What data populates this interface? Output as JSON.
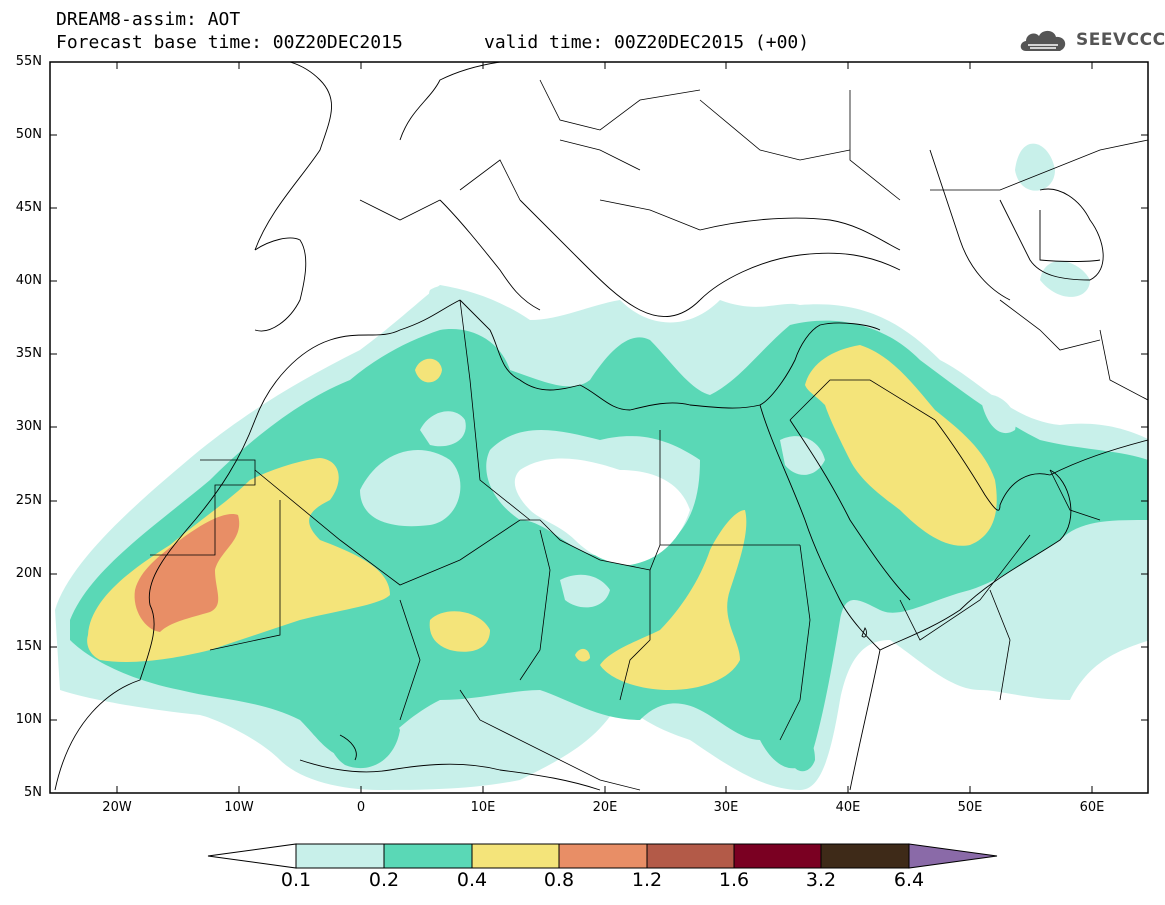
{
  "header": {
    "line1": "DREAM8-assim: AOT",
    "line2": "Forecast base time: 00Z20DEC2015",
    "line3": "valid time: 00Z20DEC2015 (+00)",
    "logo_text": "SEEVCCC",
    "logo_icon": "cloud-icon"
  },
  "axes": {
    "lat_labels": [
      "55N",
      "50N",
      "45N",
      "40N",
      "35N",
      "30N",
      "25N",
      "20N",
      "15N",
      "10N",
      "5N"
    ],
    "lon_labels": [
      "20W",
      "10W",
      "0",
      "10E",
      "20E",
      "30E",
      "40E",
      "50E",
      "60E"
    ],
    "lon_range": [
      -25,
      65
    ],
    "lat_range": [
      5,
      55
    ]
  },
  "colorbar": {
    "labels": [
      "0.1",
      "0.2",
      "0.4",
      "0.8",
      "1.2",
      "1.6",
      "3.2",
      "6.4"
    ],
    "colors": [
      "#ffffff",
      "#c8f0ea",
      "#5ad8b6",
      "#f4e47a",
      "#e88e66",
      "#b35a48",
      "#7a0022",
      "#3e2a18",
      "#8a6aa8"
    ]
  },
  "map_colors": {
    "light": "#c8f0ea",
    "green": "#5ad8b6",
    "yellow": "#f4e47a",
    "orange": "#e88e66"
  }
}
